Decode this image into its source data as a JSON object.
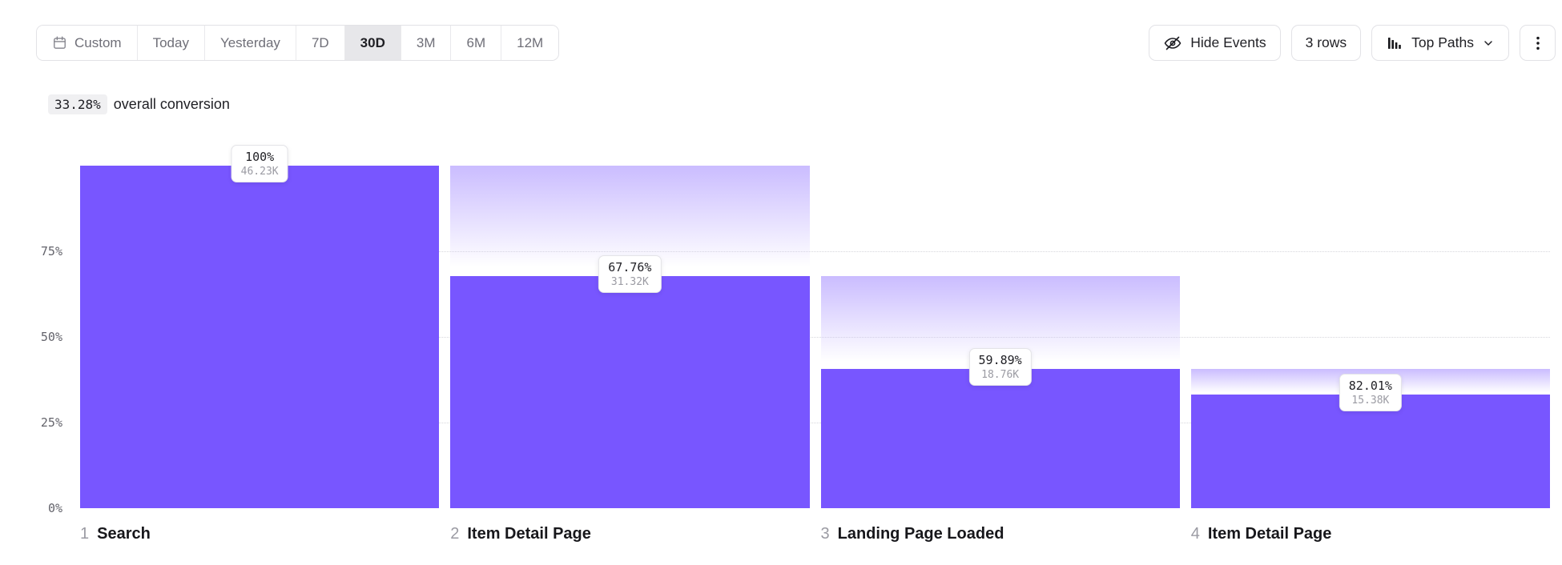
{
  "toolbar": {
    "date_ranges": [
      {
        "label": "Custom",
        "icon": "calendar",
        "selected": false
      },
      {
        "label": "Today",
        "selected": false
      },
      {
        "label": "Yesterday",
        "selected": false
      },
      {
        "label": "7D",
        "selected": false
      },
      {
        "label": "30D",
        "selected": true
      },
      {
        "label": "3M",
        "selected": false
      },
      {
        "label": "6M",
        "selected": false
      },
      {
        "label": "12M",
        "selected": false
      }
    ],
    "hide_events_label": "Hide Events",
    "hide_events_icon": "eye-off-icon",
    "rows_label": "3 rows",
    "top_paths_label": "Top Paths",
    "top_paths_icon": "bar-chart-icon",
    "more_menu_icon": "kebab-menu-icon"
  },
  "summary": {
    "conversion_value": "33.28%",
    "conversion_text": "overall conversion"
  },
  "chart_data": {
    "type": "bar",
    "subtype": "funnel",
    "title": "",
    "ylim": [
      0,
      100
    ],
    "grid": "dotted-horizontal",
    "bar_color": "#7856ff",
    "dropoff_gradient_top_color": "#cabcff",
    "y_ticks": [
      {
        "label": "75%",
        "value": 75
      },
      {
        "label": "50%",
        "value": 50
      },
      {
        "label": "25%",
        "value": 25
      },
      {
        "label": "0%",
        "value": 0
      }
    ],
    "steps": [
      {
        "index": "1",
        "name": "Search",
        "pct_label": "100%",
        "count_label": "46.23K",
        "height_pct": 100,
        "prev_height_pct": 100
      },
      {
        "index": "2",
        "name": "Item Detail Page",
        "pct_label": "67.76%",
        "count_label": "31.32K",
        "height_pct": 67.76,
        "prev_height_pct": 100
      },
      {
        "index": "3",
        "name": "Landing Page Loaded",
        "pct_label": "59.89%",
        "count_label": "18.76K",
        "height_pct": 40.58,
        "prev_height_pct": 67.76
      },
      {
        "index": "4",
        "name": "Item Detail Page",
        "pct_label": "82.01%",
        "count_label": "15.38K",
        "height_pct": 33.28,
        "prev_height_pct": 40.58
      }
    ]
  }
}
